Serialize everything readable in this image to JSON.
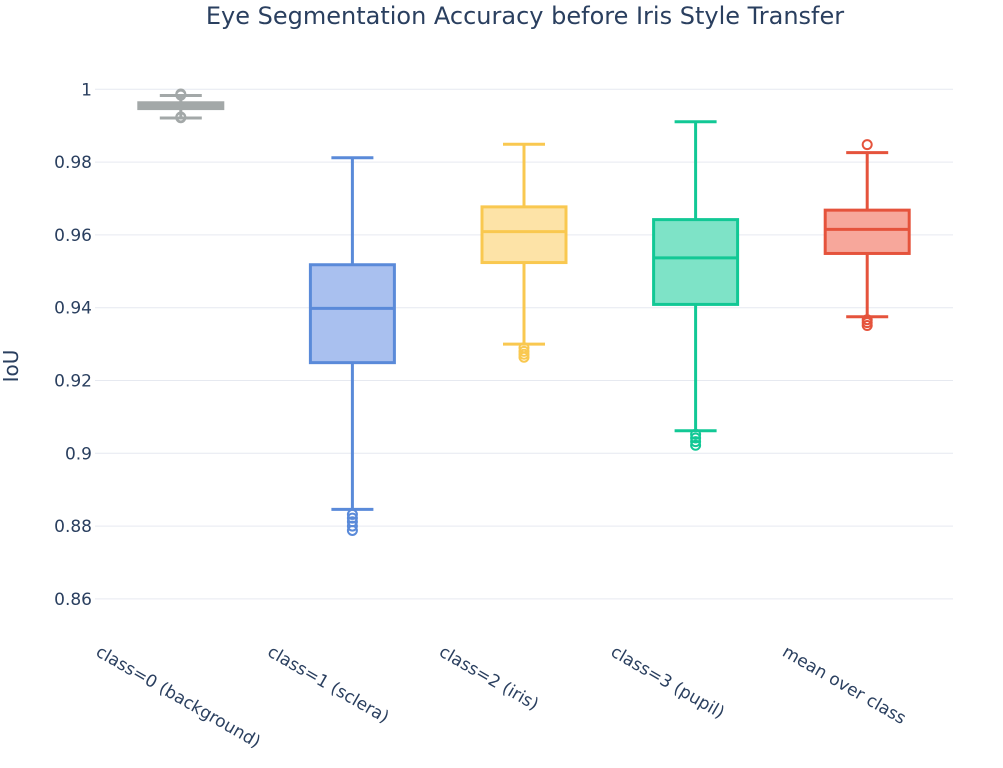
{
  "chart_data": {
    "type": "box",
    "title": "Eye Segmentation Accuracy before Iris Style Transfer",
    "xlabel": "",
    "ylabel": "IoU",
    "ylim": [
      0.852,
      1.0075
    ],
    "yticks": [
      0.86,
      0.88,
      0.9,
      0.92,
      0.94,
      0.96,
      0.98,
      1
    ],
    "ytick_labels": [
      "0.86",
      "0.88",
      "0.9",
      "0.92",
      "0.94",
      "0.96",
      "0.98",
      "1"
    ],
    "grid": true,
    "legend": "none",
    "categories": [
      "class=0 (background)",
      "class=1 (sclera)",
      "class=2 (iris)",
      "class=3 (pupil)",
      "mean over class"
    ],
    "boxes": [
      {
        "category": "class=0 (background)",
        "color": "#a3a8a8",
        "fill": "#a3a8a8",
        "lowerfence": 0.9921,
        "q1": 0.9947,
        "median": 0.9953,
        "q3": 0.9963,
        "upperfence": 0.9983,
        "outliers": [
          0.9922,
          0.9924,
          0.9984,
          0.9987
        ]
      },
      {
        "category": "class=1 (sclera)",
        "color": "#5a8ad9",
        "fill": "#a9c0ef",
        "lowerfence": 0.8846,
        "q1": 0.9249,
        "median": 0.9398,
        "q3": 0.9518,
        "upperfence": 0.9812,
        "outliers": [
          0.8832,
          0.8822,
          0.8812,
          0.88,
          0.8788
        ]
      },
      {
        "category": "class=2 (iris)",
        "color": "#f9c850",
        "fill": "#fde3a7",
        "lowerfence": 0.93,
        "q1": 0.9524,
        "median": 0.9609,
        "q3": 0.9677,
        "upperfence": 0.9849,
        "outliers": [
          0.929,
          0.928,
          0.9272,
          0.9264
        ]
      },
      {
        "category": "class=3 (pupil)",
        "color": "#12c895",
        "fill": "#7ee3c7",
        "lowerfence": 0.9062,
        "q1": 0.9409,
        "median": 0.9537,
        "q3": 0.9642,
        "upperfence": 0.9911,
        "outliers": [
          0.9052,
          0.9042,
          0.9032,
          0.9022
        ]
      },
      {
        "category": "mean over class",
        "color": "#e5533c",
        "fill": "#f7a79b",
        "lowerfence": 0.9375,
        "q1": 0.9549,
        "median": 0.9615,
        "q3": 0.9668,
        "upperfence": 0.9826,
        "outliers": [
          0.9367,
          0.9359,
          0.9351,
          0.9848
        ]
      }
    ]
  }
}
